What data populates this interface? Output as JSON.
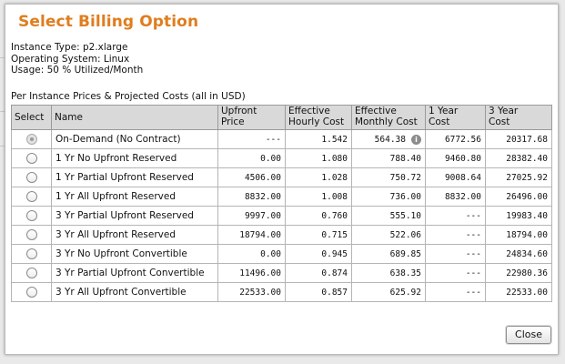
{
  "dialog": {
    "title": "Select Billing Option",
    "instance_type": "Instance Type: p2.xlarge",
    "operating_system": "Operating System: Linux",
    "usage": "Usage: 50 % Utilized/Month",
    "table_caption": "Per Instance Prices & Projected Costs (all in USD)",
    "close_label": "Close"
  },
  "table": {
    "headers": {
      "select": "Select",
      "name": "Name",
      "upfront_l1": "Upfront",
      "upfront_l2": "Price",
      "hourly_l1": "Effective",
      "hourly_l2": "Hourly Cost",
      "monthly_l1": "Effective",
      "monthly_l2": "Monthly Cost",
      "year1_l1": "1 Year",
      "year1_l2": "Cost",
      "year3_l1": "3 Year",
      "year3_l2": "Cost"
    },
    "rows": [
      {
        "name": "On-Demand (No Contract)",
        "upfront": "---",
        "hourly": "1.542",
        "monthly": "564.38",
        "year1": "6772.56",
        "year3": "20317.68",
        "selected": true
      },
      {
        "name": "1 Yr No Upfront Reserved",
        "upfront": "0.00",
        "hourly": "1.080",
        "monthly": "788.40",
        "year1": "9460.80",
        "year3": "28382.40",
        "selected": false
      },
      {
        "name": "1 Yr Partial Upfront Reserved",
        "upfront": "4506.00",
        "hourly": "1.028",
        "monthly": "750.72",
        "year1": "9008.64",
        "year3": "27025.92",
        "selected": false
      },
      {
        "name": "1 Yr All Upfront Reserved",
        "upfront": "8832.00",
        "hourly": "1.008",
        "monthly": "736.00",
        "year1": "8832.00",
        "year3": "26496.00",
        "selected": false
      },
      {
        "name": "3 Yr Partial Upfront Reserved",
        "upfront": "9997.00",
        "hourly": "0.760",
        "monthly": "555.10",
        "year1": "---",
        "year3": "19983.40",
        "selected": false
      },
      {
        "name": "3 Yr All Upfront Reserved",
        "upfront": "18794.00",
        "hourly": "0.715",
        "monthly": "522.06",
        "year1": "---",
        "year3": "18794.00",
        "selected": false
      },
      {
        "name": "3 Yr No Upfront Convertible",
        "upfront": "0.00",
        "hourly": "0.945",
        "monthly": "689.85",
        "year1": "---",
        "year3": "24834.60",
        "selected": false
      },
      {
        "name": "3 Yr Partial Upfront Convertible",
        "upfront": "11496.00",
        "hourly": "0.874",
        "monthly": "638.35",
        "year1": "---",
        "year3": "22980.36",
        "selected": false
      },
      {
        "name": "3 Yr All Upfront Convertible",
        "upfront": "22533.00",
        "hourly": "0.857",
        "monthly": "625.92",
        "year1": "---",
        "year3": "22533.00",
        "selected": false
      }
    ]
  },
  "colors": {
    "title": "#e07d1e",
    "header_bg": "#d9d9d9"
  }
}
